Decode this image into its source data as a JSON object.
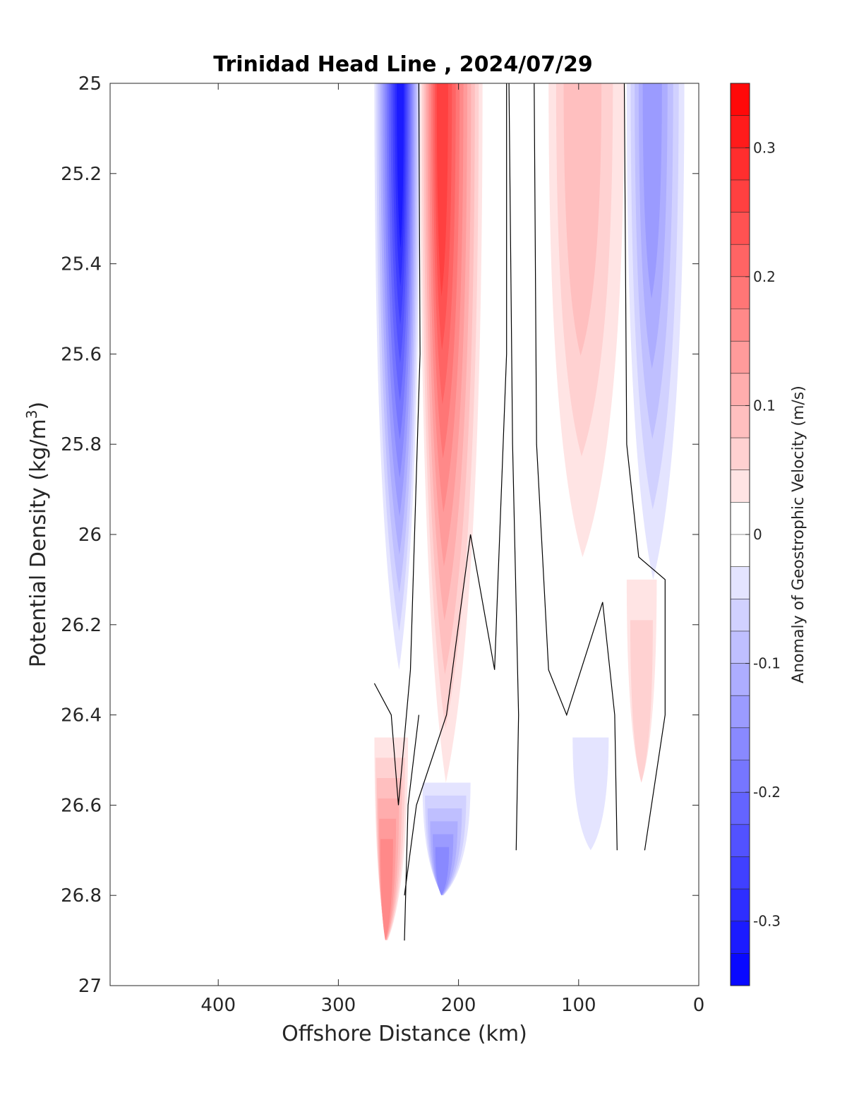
{
  "chart_data": {
    "type": "heatmap",
    "title": "Trinidad Head Line , 2024/07/29",
    "xlabel": "Offshore Distance (km)",
    "ylabel_main": "Potential Density (kg/m",
    "ylabel_sup": "3",
    "ylabel_end": ")",
    "colorbar_label": "Anomaly of Geostrophic Velocity (m/s)",
    "xlim": [
      490,
      0
    ],
    "x_reversed": true,
    "ylim": [
      25,
      27
    ],
    "y_reversed": true,
    "x_ticks": [
      400,
      300,
      200,
      100,
      0
    ],
    "x_tick_labels": [
      "400",
      "300",
      "200",
      "100",
      "0"
    ],
    "y_ticks": [
      25,
      25.2,
      25.4,
      25.6,
      25.8,
      26,
      26.2,
      26.4,
      26.6,
      26.8,
      27
    ],
    "y_tick_labels": [
      "25",
      "25.2",
      "25.4",
      "25.6",
      "25.8",
      "26",
      "26.2",
      "26.4",
      "26.6",
      "26.8",
      "27"
    ],
    "colorbar_range": [
      -0.35,
      0.35
    ],
    "colorbar_levels": 28,
    "colorbar_ticks": [
      0.3,
      0.2,
      0.1,
      0,
      -0.1,
      -0.2,
      -0.3
    ],
    "colorbar_tick_labels": [
      "0.3",
      "0.2",
      "0.1",
      "0",
      "-0.1",
      "-0.2",
      "-0.3"
    ],
    "colormap": {
      "negative": "#0000ff",
      "zero": "#ffffff",
      "positive": "#ff0000"
    },
    "grid": false,
    "bands": [
      {
        "x": [
          270,
          232
        ],
        "y": [
          25.0,
          26.3
        ],
        "v_top": -0.32,
        "v_bottom": -0.05,
        "peak_x": 248
      },
      {
        "x": [
          232,
          180
        ],
        "y": [
          25.0,
          26.55
        ],
        "v_top": 0.27,
        "v_bottom": 0.04,
        "peak_x": 215
      },
      {
        "x": [
          125,
          62
        ],
        "y": [
          25.0,
          26.05
        ],
        "v_top": 0.09,
        "v_bottom": 0.03,
        "peak_x": 100
      },
      {
        "x": [
          60,
          12
        ],
        "y": [
          25.0,
          26.1
        ],
        "v_top": -0.15,
        "v_bottom": -0.03,
        "peak_x": 40
      },
      {
        "x": [
          270,
          242
        ],
        "y": [
          26.45,
          26.9
        ],
        "v_top": 0.08,
        "v_bottom": 0.18,
        "peak_x": 262
      },
      {
        "x": [
          230,
          190
        ],
        "y": [
          26.55,
          26.8
        ],
        "v_top": -0.05,
        "v_bottom": -0.17,
        "peak_x": 215
      },
      {
        "x": [
          105,
          75
        ],
        "y": [
          26.45,
          26.7
        ],
        "v_top": -0.02,
        "v_bottom": -0.04,
        "peak_x": 90
      },
      {
        "x": [
          60,
          35
        ],
        "y": [
          26.1,
          26.55
        ],
        "v_top": 0.05,
        "v_bottom": 0.08,
        "peak_x": 48
      }
    ],
    "zero_contours": [
      [
        [
          233,
          25.0
        ],
        [
          232,
          25.6
        ],
        [
          240,
          26.3
        ],
        [
          250,
          26.6
        ],
        [
          256,
          26.4
        ],
        [
          270,
          26.33
        ]
      ],
      [
        [
          233,
          26.4
        ],
        [
          242,
          26.6
        ],
        [
          245,
          26.9
        ]
      ],
      [
        [
          160,
          25.0
        ],
        [
          160,
          25.6
        ],
        [
          170,
          26.3
        ],
        [
          190,
          26.0
        ],
        [
          210,
          26.4
        ],
        [
          235,
          26.6
        ],
        [
          245,
          26.8
        ]
      ],
      [
        [
          158,
          25.0
        ],
        [
          155,
          25.8
        ],
        [
          150,
          26.4
        ],
        [
          152,
          26.7
        ]
      ],
      [
        [
          137,
          25.0
        ],
        [
          135,
          25.8
        ],
        [
          125,
          26.3
        ],
        [
          110,
          26.4
        ],
        [
          80,
          26.15
        ],
        [
          70,
          26.4
        ],
        [
          68,
          26.7
        ]
      ],
      [
        [
          62,
          25.0
        ],
        [
          60,
          25.8
        ],
        [
          50,
          26.05
        ],
        [
          28,
          26.1
        ],
        [
          28,
          26.4
        ],
        [
          45,
          26.7
        ]
      ]
    ]
  }
}
